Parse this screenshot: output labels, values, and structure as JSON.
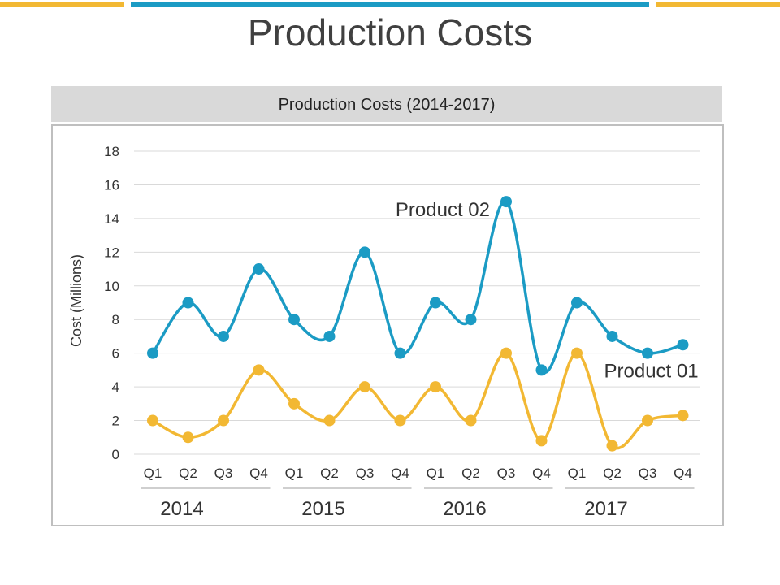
{
  "page": {
    "title": "Production Costs"
  },
  "colors": {
    "accent_yellow": "#f2b833",
    "accent_blue": "#1b9bc4",
    "series_product_02": "#1b9bc4",
    "series_product_01": "#f2b833"
  },
  "chart_data": {
    "type": "line",
    "title": "Production Costs (2014-2017)",
    "ylabel": "Cost (Millions)",
    "xlabel": "",
    "ylim": [
      0,
      18
    ],
    "yticks": [
      0,
      2,
      4,
      6,
      8,
      10,
      12,
      14,
      16,
      18
    ],
    "grid": true,
    "categories": [
      "Q1",
      "Q2",
      "Q3",
      "Q4",
      "Q1",
      "Q2",
      "Q3",
      "Q4",
      "Q1",
      "Q2",
      "Q3",
      "Q4",
      "Q1",
      "Q2",
      "Q3",
      "Q4"
    ],
    "groups": [
      {
        "label": "2014",
        "quarters": 4
      },
      {
        "label": "2015",
        "quarters": 4
      },
      {
        "label": "2016",
        "quarters": 4
      },
      {
        "label": "2017",
        "quarters": 4
      }
    ],
    "series": [
      {
        "name": "Product 02",
        "color": "#1b9bc4",
        "values": [
          6,
          9,
          7,
          11,
          8,
          7,
          12,
          6,
          9,
          8,
          15,
          5,
          9,
          7,
          6,
          6.5
        ]
      },
      {
        "name": "Product 01",
        "color": "#f2b833",
        "values": [
          2,
          1,
          2,
          5,
          3,
          2,
          4,
          2,
          4,
          2,
          6,
          0.8,
          6,
          0.5,
          2,
          2.3
        ]
      }
    ]
  }
}
